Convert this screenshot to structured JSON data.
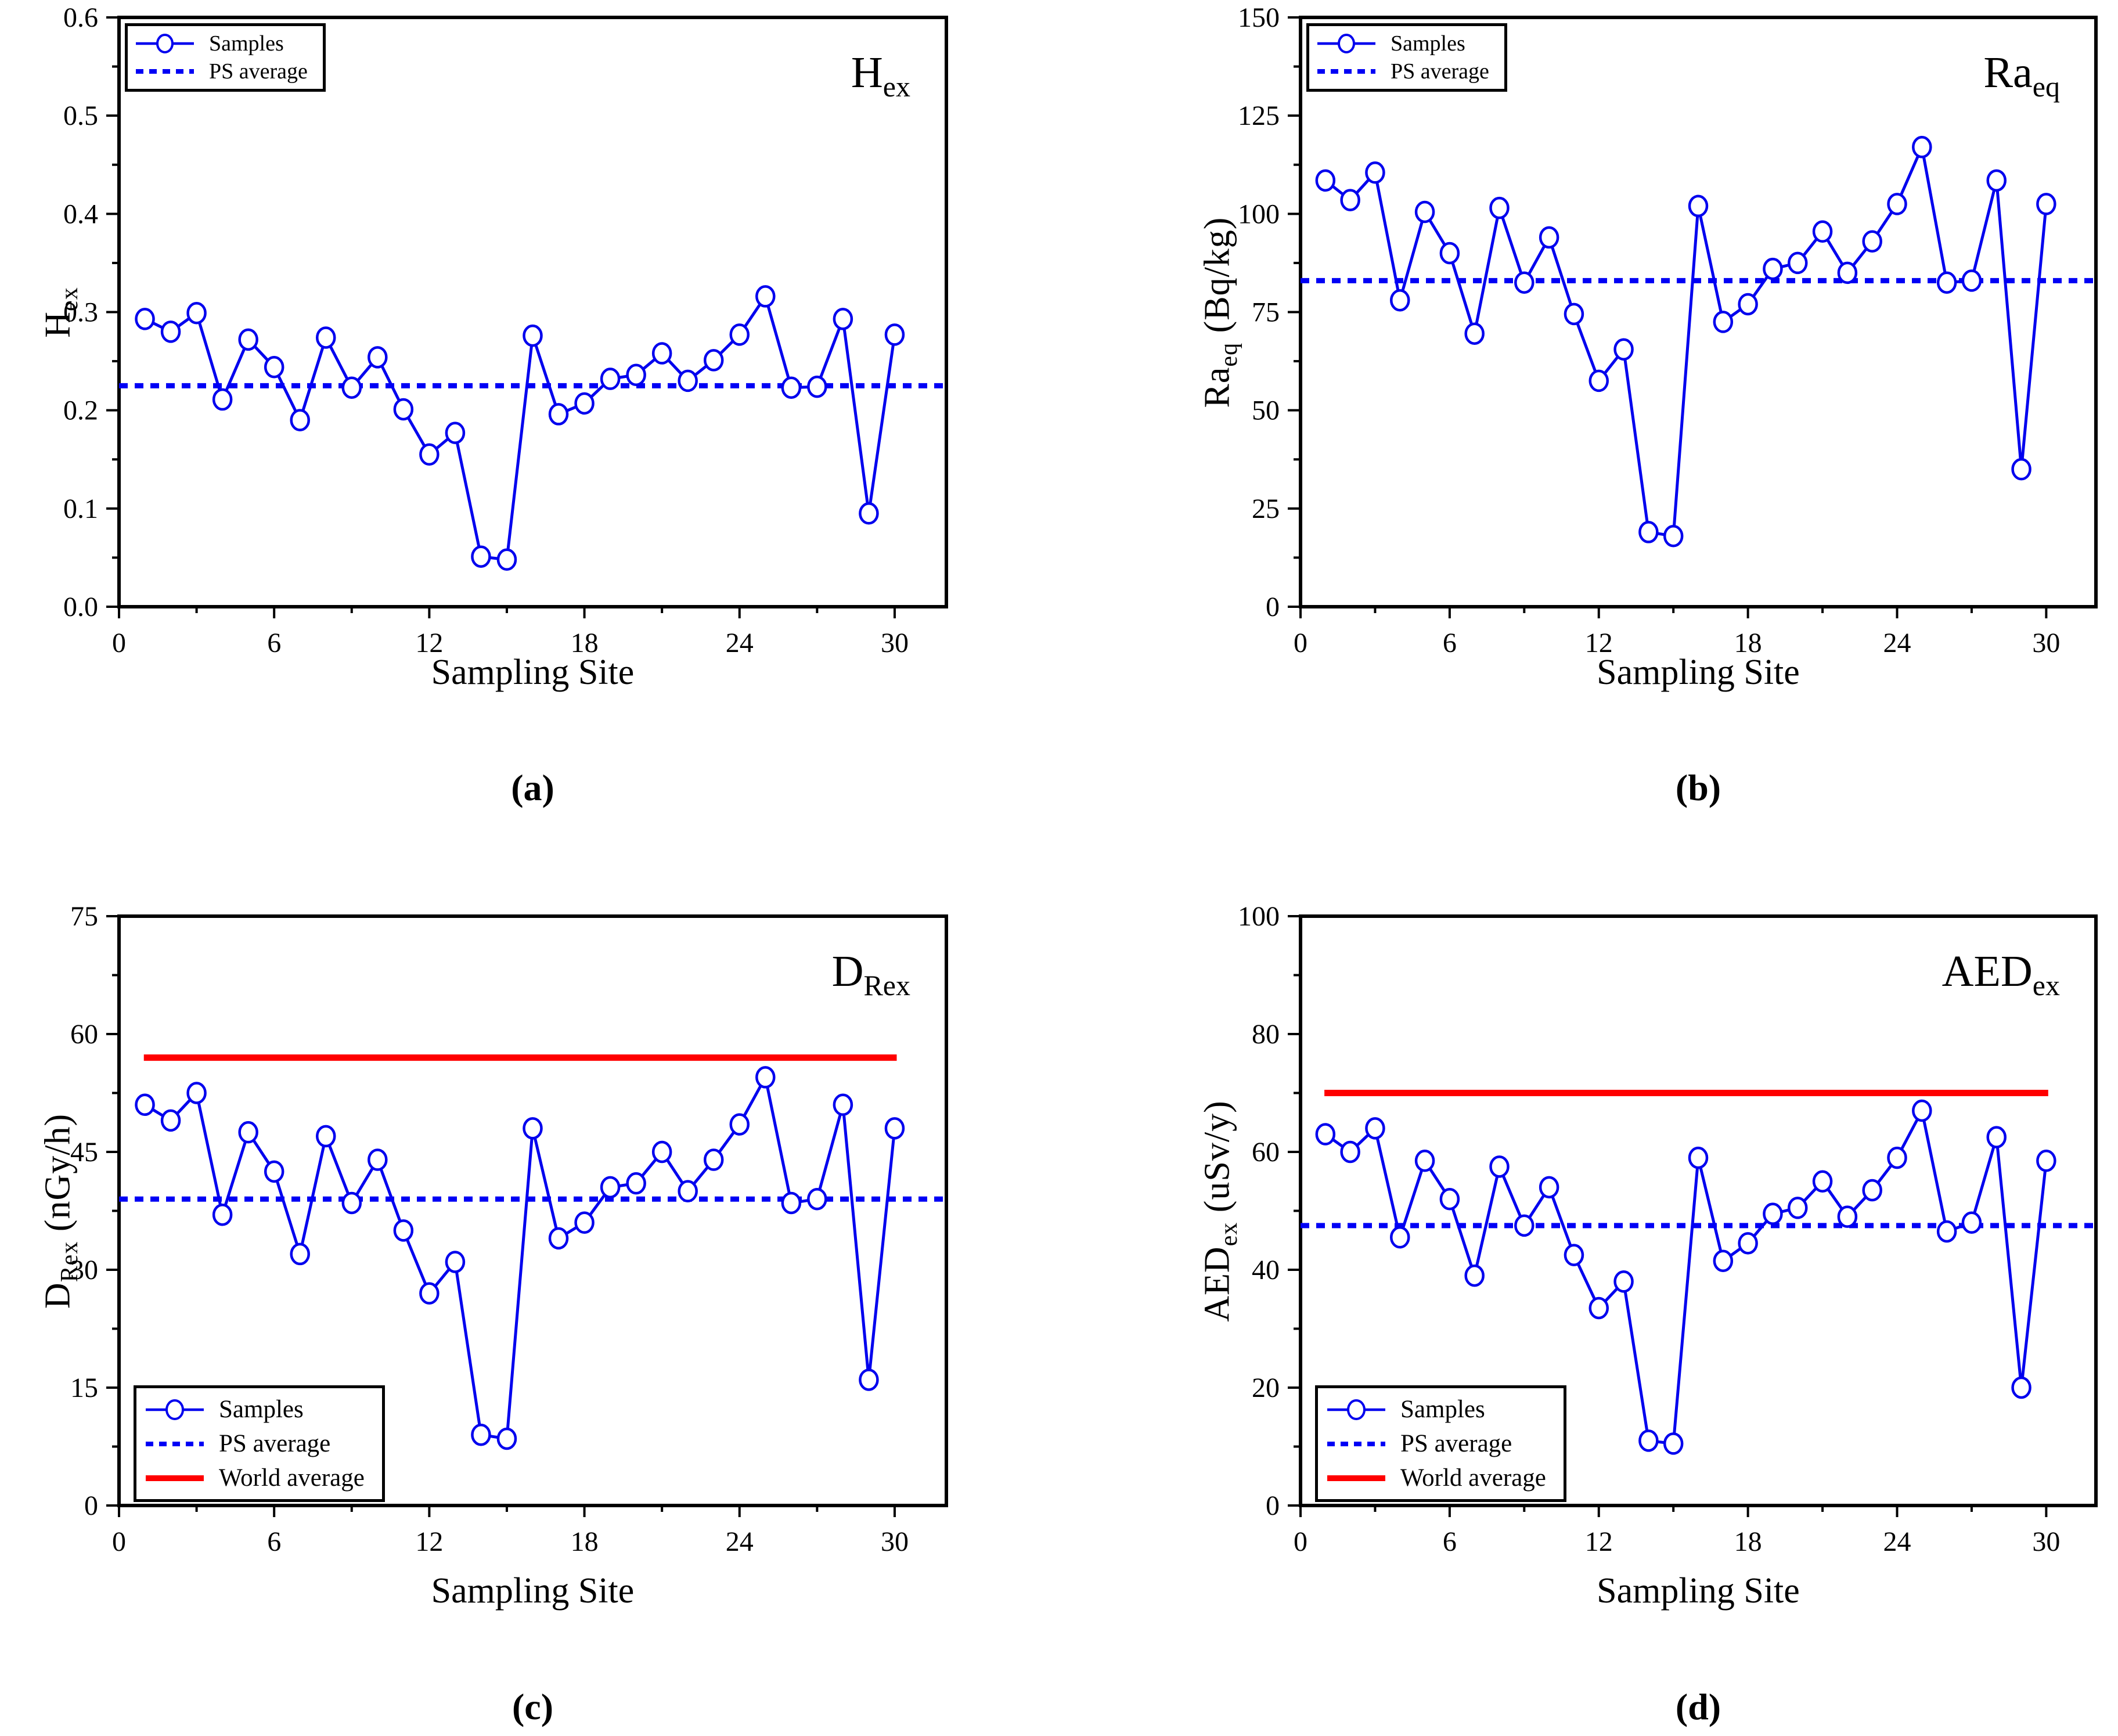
{
  "figure": {
    "xlabel": "Sampling Site",
    "captions": {
      "a": "(a)",
      "b": "(b)",
      "c": "(c)",
      "d": "(d)"
    },
    "legend": {
      "samples": "Samples",
      "ps_average": "PS average",
      "world_average": "World average"
    },
    "colors": {
      "series": "#0000EE",
      "ps_average": "#0000F5",
      "world_average": "#FF0000",
      "axis": "#000000",
      "background": "#FFFFFF"
    }
  },
  "chart_data": [
    {
      "panel": "a",
      "type": "line",
      "title": {
        "main": "H",
        "sub": "ex"
      },
      "ylabel": {
        "main": "H",
        "sub": "ex",
        "unit": ""
      },
      "xlabel": "Sampling Site",
      "caption": "(a)",
      "xlim": [
        0,
        32
      ],
      "x_major_ticks": [
        0,
        6,
        12,
        18,
        24,
        30
      ],
      "x_minor_ticks": [
        3,
        9,
        15,
        21,
        27
      ],
      "ylim": [
        0,
        0.6
      ],
      "y_tick_labels": [
        "0.0",
        "0.1",
        "0.2",
        "0.3",
        "0.4",
        "0.5",
        "0.6"
      ],
      "x": [
        1,
        2,
        3,
        4,
        5,
        6,
        7,
        8,
        9,
        10,
        11,
        12,
        13,
        14,
        15,
        16,
        17,
        18,
        19,
        20,
        21,
        22,
        23,
        24,
        25,
        26,
        27,
        28,
        29,
        30
      ],
      "values": [
        0.293,
        0.28,
        0.299,
        0.211,
        0.272,
        0.244,
        0.19,
        0.274,
        0.223,
        0.254,
        0.201,
        0.155,
        0.177,
        0.051,
        0.048,
        0.276,
        0.196,
        0.207,
        0.232,
        0.236,
        0.258,
        0.23,
        0.251,
        0.277,
        0.316,
        0.223,
        0.224,
        0.293,
        0.095,
        0.277
      ],
      "ps_average": 0.225,
      "world_average": null,
      "legend_entries": [
        "Samples",
        "PS average"
      ],
      "legend_position": "top-left"
    },
    {
      "panel": "b",
      "type": "line",
      "title": {
        "main": "Ra",
        "sub": "eq"
      },
      "ylabel": {
        "main": "Ra",
        "sub": "eq",
        "unit": " (Bq/kg)"
      },
      "xlabel": "Sampling Site",
      "caption": "(b)",
      "xlim": [
        0,
        32
      ],
      "x_major_ticks": [
        0,
        6,
        12,
        18,
        24,
        30
      ],
      "x_minor_ticks": [
        3,
        9,
        15,
        21,
        27
      ],
      "ylim": [
        0,
        150
      ],
      "y_tick_labels": [
        "0",
        "25",
        "50",
        "75",
        "100",
        "125",
        "150"
      ],
      "x": [
        1,
        2,
        3,
        4,
        5,
        6,
        7,
        8,
        9,
        10,
        11,
        12,
        13,
        14,
        15,
        16,
        17,
        18,
        19,
        20,
        21,
        22,
        23,
        24,
        25,
        26,
        27,
        28,
        29,
        30
      ],
      "values": [
        108.5,
        103.5,
        110.5,
        78,
        100.5,
        90,
        69.5,
        101.5,
        82.5,
        94,
        74.5,
        57.5,
        65.5,
        19,
        18,
        102,
        72.5,
        77,
        86,
        87.5,
        95.5,
        85,
        93,
        102.5,
        117,
        82.5,
        83,
        108.5,
        35,
        102.5
      ],
      "ps_average": 83,
      "world_average": null,
      "legend_entries": [
        "Samples",
        "PS average"
      ],
      "legend_position": "top-left"
    },
    {
      "panel": "c",
      "type": "line",
      "title": {
        "main": "D",
        "sub": "Rex"
      },
      "ylabel": {
        "main": "D",
        "sub": "Rex",
        "unit": " (nGy/h)"
      },
      "xlabel": "Sampling Site",
      "caption": "(c)",
      "xlim": [
        0,
        32
      ],
      "x_major_ticks": [
        0,
        6,
        12,
        18,
        24,
        30
      ],
      "x_minor_ticks": [
        3,
        9,
        15,
        21,
        27
      ],
      "ylim": [
        0,
        75
      ],
      "y_tick_labels": [
        "0",
        "15",
        "30",
        "45",
        "60",
        "75"
      ],
      "x": [
        1,
        2,
        3,
        4,
        5,
        6,
        7,
        8,
        9,
        10,
        11,
        12,
        13,
        14,
        15,
        16,
        17,
        18,
        19,
        20,
        21,
        22,
        23,
        24,
        25,
        26,
        27,
        28,
        29,
        30
      ],
      "values": [
        51,
        49,
        52.5,
        37,
        47.5,
        42.5,
        32,
        47,
        38.5,
        44,
        35,
        27,
        31,
        9,
        8.5,
        48,
        34,
        36,
        40.5,
        41,
        45,
        40,
        44,
        48.5,
        54.5,
        38.5,
        39,
        51,
        16,
        48
      ],
      "ps_average": 39,
      "world_average": 57,
      "legend_entries": [
        "Samples",
        "PS average",
        "World average"
      ],
      "legend_position": "bottom-left"
    },
    {
      "panel": "d",
      "type": "line",
      "title": {
        "main": "AED",
        "sub": "ex"
      },
      "ylabel": {
        "main": "AED",
        "sub": "ex",
        "unit": " (uSv/y)"
      },
      "xlabel": "Sampling Site",
      "caption": "(d)",
      "xlim": [
        0,
        32
      ],
      "x_major_ticks": [
        0,
        6,
        12,
        18,
        24,
        30
      ],
      "x_minor_ticks": [
        3,
        9,
        15,
        21,
        27
      ],
      "ylim": [
        0,
        100
      ],
      "y_tick_labels": [
        "0",
        "20",
        "40",
        "60",
        "80",
        "100"
      ],
      "x": [
        1,
        2,
        3,
        4,
        5,
        6,
        7,
        8,
        9,
        10,
        11,
        12,
        13,
        14,
        15,
        16,
        17,
        18,
        19,
        20,
        21,
        22,
        23,
        24,
        25,
        26,
        27,
        28,
        29,
        30
      ],
      "values": [
        63,
        60,
        64,
        45.5,
        58.5,
        52,
        39,
        57.5,
        47.5,
        54,
        42.5,
        33.5,
        38,
        11,
        10.5,
        59,
        41.5,
        44.5,
        49.5,
        50.5,
        55,
        49,
        53.5,
        59,
        67,
        46.5,
        48,
        62.5,
        20,
        58.5
      ],
      "ps_average": 47.5,
      "world_average": 70,
      "legend_entries": [
        "Samples",
        "PS average",
        "World average"
      ],
      "legend_position": "bottom-left"
    }
  ]
}
